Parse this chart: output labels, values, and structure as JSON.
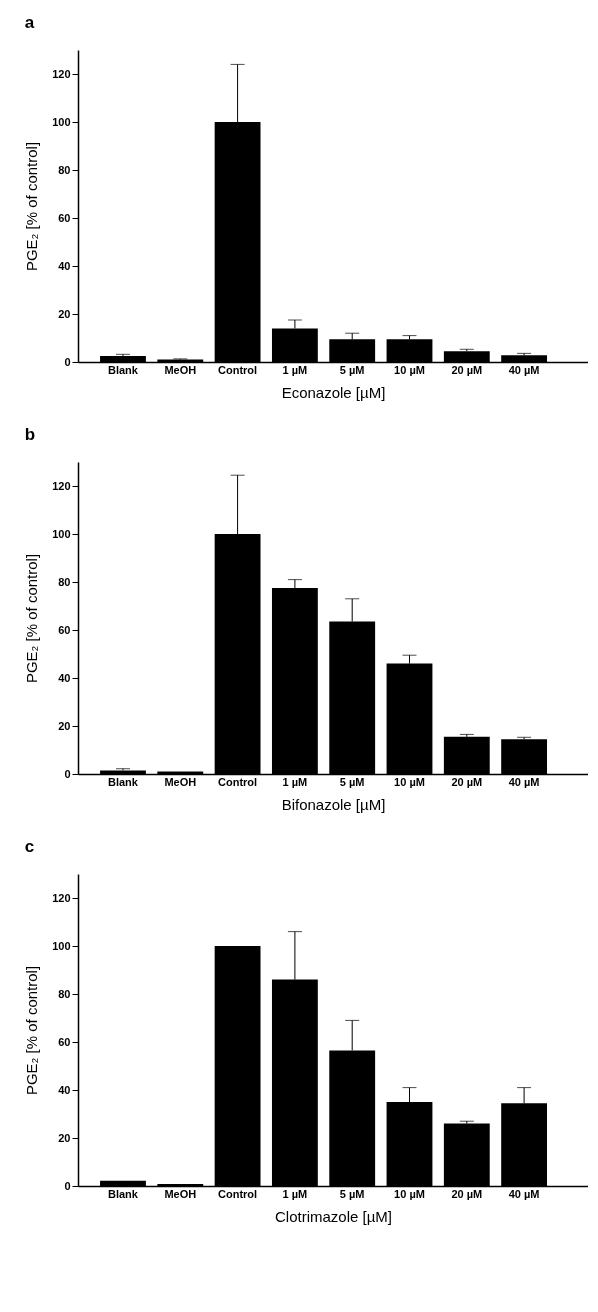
{
  "chart_data": [
    {
      "type": "bar",
      "title": "a",
      "xlabel": "Econazole [µM]",
      "ylabel": "PGE₂ [% of control]",
      "categories": [
        "Blank",
        "MeOH",
        "Control",
        "1 µM",
        "5 µM",
        "10 µM",
        "20 µM",
        "40 µM"
      ],
      "values": [
        2.5,
        1,
        100,
        14,
        9.5,
        9.5,
        4.5,
        2.8
      ],
      "errors": [
        [
          2.5,
          3.2
        ],
        [
          1,
          1.3
        ],
        [
          100,
          124
        ],
        [
          14,
          17.5
        ],
        [
          9.5,
          12
        ],
        [
          9.5,
          11
        ],
        [
          4.5,
          5.3
        ],
        [
          2.8,
          3.6
        ]
      ],
      "color": "#000000",
      "ylim": [
        0,
        130
      ],
      "yticks": [
        0,
        20,
        40,
        60,
        80,
        100,
        120
      ]
    },
    {
      "type": "bar",
      "title": "b",
      "xlabel": "Bifonazole [µM]",
      "ylabel": "PGE₂ [% of control]",
      "categories": [
        "Blank",
        "MeOH",
        "Control",
        "1 µM",
        "5 µM",
        "10 µM",
        "20 µM",
        "40 µM"
      ],
      "values": [
        1.5,
        1,
        100,
        77.5,
        63.5,
        46,
        15.5,
        14.5
      ],
      "errors": [
        [
          1.5,
          2.2
        ],
        null,
        [
          100,
          124.5
        ],
        [
          77.5,
          81
        ],
        [
          63.5,
          73
        ],
        [
          46,
          49.5
        ],
        [
          15.5,
          16.5
        ],
        [
          14.5,
          15.3
        ]
      ],
      "color": "#000000",
      "ylim": [
        0,
        130
      ],
      "yticks": [
        0,
        20,
        40,
        60,
        80,
        100,
        120
      ]
    },
    {
      "type": "bar",
      "title": "c",
      "xlabel": "Clotrimazole [µM]",
      "ylabel": "PGE₂ [% of control]",
      "categories": [
        "Blank",
        "MeOH",
        "Control",
        "1 µM",
        "5 µM",
        "10 µM",
        "20 µM",
        "40 µM"
      ],
      "values": [
        2.2,
        0.8,
        100,
        86,
        56.5,
        35,
        26,
        34.5
      ],
      "errors": [
        null,
        null,
        null,
        [
          86,
          106
        ],
        [
          56.5,
          69
        ],
        [
          35,
          41
        ],
        [
          26,
          27
        ],
        [
          34.5,
          41
        ]
      ],
      "color": "#000000",
      "ylim": [
        0,
        130
      ],
      "yticks": [
        0,
        20,
        40,
        60,
        80,
        100,
        120
      ]
    }
  ]
}
